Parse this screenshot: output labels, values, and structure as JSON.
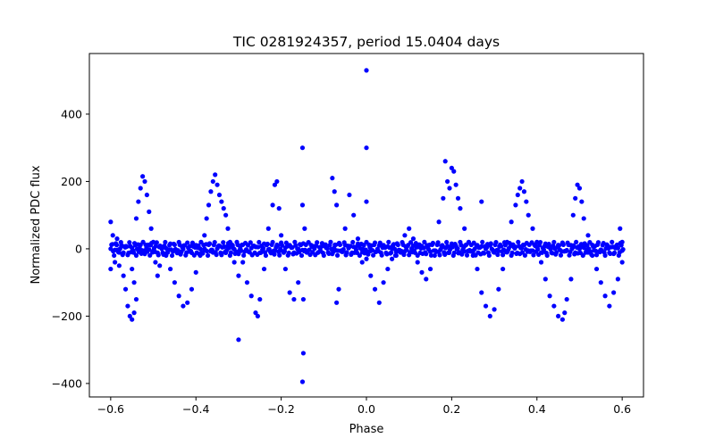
{
  "chart_data": {
    "type": "scatter",
    "title": "TIC 0281924357, period 15.0404 days",
    "xlabel": "Phase",
    "ylabel": "Normalized PDC flux",
    "xlim": [
      -0.65,
      0.65
    ],
    "ylim": [
      -440,
      580
    ],
    "xticks": [
      -0.6,
      -0.4,
      -0.2,
      0.0,
      0.2,
      0.4,
      0.6
    ],
    "xtick_labels": [
      "−0.6",
      "−0.4",
      "−0.2",
      "0.0",
      "0.2",
      "0.4",
      "0.6"
    ],
    "yticks": [
      -400,
      -200,
      0,
      200,
      400
    ],
    "ytick_labels": [
      "−400",
      "−200",
      "0",
      "200",
      "400"
    ],
    "grid": false,
    "marker_color": "#0000ff",
    "series": [
      {
        "points": [
          [
            -0.6,
            80
          ],
          [
            -0.6,
            -60
          ],
          [
            -0.595,
            40
          ],
          [
            -0.59,
            -40
          ],
          [
            -0.585,
            30
          ],
          [
            -0.58,
            -50
          ],
          [
            -0.575,
            10
          ],
          [
            -0.57,
            -80
          ],
          [
            -0.565,
            -120
          ],
          [
            -0.56,
            -170
          ],
          [
            -0.555,
            -200
          ],
          [
            -0.55,
            -210
          ],
          [
            -0.545,
            -190
          ],
          [
            -0.54,
            -150
          ],
          [
            -0.545,
            -100
          ],
          [
            -0.55,
            -60
          ],
          [
            -0.54,
            90
          ],
          [
            -0.535,
            140
          ],
          [
            -0.53,
            180
          ],
          [
            -0.525,
            215
          ],
          [
            -0.52,
            200
          ],
          [
            -0.515,
            160
          ],
          [
            -0.51,
            110
          ],
          [
            -0.505,
            60
          ],
          [
            -0.5,
            20
          ],
          [
            -0.495,
            -40
          ],
          [
            -0.49,
            -80
          ],
          [
            -0.485,
            -50
          ],
          [
            -0.48,
            0
          ],
          [
            -0.47,
            -20
          ],
          [
            -0.46,
            -60
          ],
          [
            -0.45,
            -100
          ],
          [
            -0.44,
            -140
          ],
          [
            -0.43,
            -170
          ],
          [
            -0.42,
            -160
          ],
          [
            -0.41,
            -120
          ],
          [
            -0.4,
            -70
          ],
          [
            -0.39,
            -20
          ],
          [
            -0.38,
            40
          ],
          [
            -0.375,
            90
          ],
          [
            -0.37,
            130
          ],
          [
            -0.365,
            170
          ],
          [
            -0.36,
            200
          ],
          [
            -0.355,
            220
          ],
          [
            -0.35,
            190
          ],
          [
            -0.345,
            160
          ],
          [
            -0.34,
            140
          ],
          [
            -0.335,
            120
          ],
          [
            -0.33,
            100
          ],
          [
            -0.325,
            60
          ],
          [
            -0.32,
            20
          ],
          [
            -0.31,
            -40
          ],
          [
            -0.3,
            -80
          ],
          [
            -0.3,
            -270
          ],
          [
            -0.29,
            -40
          ],
          [
            -0.28,
            -100
          ],
          [
            -0.27,
            -140
          ],
          [
            -0.26,
            -190
          ],
          [
            -0.255,
            -200
          ],
          [
            -0.25,
            -150
          ],
          [
            -0.24,
            -60
          ],
          [
            -0.23,
            60
          ],
          [
            -0.22,
            130
          ],
          [
            -0.215,
            190
          ],
          [
            -0.21,
            200
          ],
          [
            -0.205,
            120
          ],
          [
            -0.2,
            40
          ],
          [
            -0.19,
            -60
          ],
          [
            -0.18,
            -130
          ],
          [
            -0.17,
            -150
          ],
          [
            -0.16,
            -100
          ],
          [
            -0.15,
            300
          ],
          [
            -0.148,
            -310
          ],
          [
            -0.15,
            -395
          ],
          [
            -0.148,
            -150
          ],
          [
            -0.15,
            130
          ],
          [
            -0.145,
            60
          ],
          [
            -0.08,
            210
          ],
          [
            -0.075,
            170
          ],
          [
            -0.07,
            130
          ],
          [
            -0.065,
            -120
          ],
          [
            -0.07,
            -160
          ],
          [
            -0.05,
            60
          ],
          [
            -0.04,
            160
          ],
          [
            -0.03,
            100
          ],
          [
            -0.02,
            30
          ],
          [
            -0.01,
            -40
          ],
          [
            0.0,
            530
          ],
          [
            0.0,
            300
          ],
          [
            0.0,
            140
          ],
          [
            0.0,
            -30
          ],
          [
            0.01,
            -80
          ],
          [
            0.02,
            -120
          ],
          [
            0.03,
            -160
          ],
          [
            0.04,
            -100
          ],
          [
            0.05,
            -60
          ],
          [
            0.06,
            -30
          ],
          [
            0.07,
            -20
          ],
          [
            0.08,
            -10
          ],
          [
            0.09,
            40
          ],
          [
            0.1,
            60
          ],
          [
            0.11,
            30
          ],
          [
            0.12,
            -40
          ],
          [
            0.13,
            -70
          ],
          [
            0.14,
            -90
          ],
          [
            0.15,
            -60
          ],
          [
            0.16,
            -20
          ],
          [
            0.17,
            80
          ],
          [
            0.18,
            150
          ],
          [
            0.185,
            260
          ],
          [
            0.19,
            200
          ],
          [
            0.195,
            180
          ],
          [
            0.2,
            240
          ],
          [
            0.205,
            230
          ],
          [
            0.21,
            190
          ],
          [
            0.215,
            150
          ],
          [
            0.22,
            120
          ],
          [
            0.23,
            60
          ],
          [
            0.24,
            20
          ],
          [
            0.25,
            -20
          ],
          [
            0.26,
            -60
          ],
          [
            0.27,
            140
          ],
          [
            0.27,
            -130
          ],
          [
            0.28,
            -170
          ],
          [
            0.29,
            -200
          ],
          [
            0.3,
            -180
          ],
          [
            0.31,
            -120
          ],
          [
            0.32,
            -60
          ],
          [
            0.33,
            20
          ],
          [
            0.34,
            80
          ],
          [
            0.35,
            130
          ],
          [
            0.355,
            160
          ],
          [
            0.36,
            180
          ],
          [
            0.365,
            200
          ],
          [
            0.37,
            170
          ],
          [
            0.375,
            140
          ],
          [
            0.38,
            100
          ],
          [
            0.39,
            60
          ],
          [
            0.4,
            20
          ],
          [
            0.41,
            -40
          ],
          [
            0.42,
            -90
          ],
          [
            0.43,
            -140
          ],
          [
            0.44,
            -170
          ],
          [
            0.45,
            -200
          ],
          [
            0.46,
            -210
          ],
          [
            0.465,
            -190
          ],
          [
            0.47,
            -150
          ],
          [
            0.48,
            -90
          ],
          [
            0.485,
            100
          ],
          [
            0.49,
            150
          ],
          [
            0.495,
            190
          ],
          [
            0.5,
            180
          ],
          [
            0.505,
            140
          ],
          [
            0.51,
            90
          ],
          [
            0.52,
            40
          ],
          [
            0.53,
            -20
          ],
          [
            0.54,
            -60
          ],
          [
            0.55,
            -100
          ],
          [
            0.56,
            -140
          ],
          [
            0.57,
            -170
          ],
          [
            0.58,
            -130
          ],
          [
            0.59,
            -90
          ],
          [
            0.6,
            -40
          ],
          [
            0.6,
            20
          ],
          [
            0.595,
            60
          ]
        ],
        "band": {
          "x_start": -0.6,
          "x_end": 0.6,
          "step": 0.004,
          "y_center": 0,
          "amplitude": 20
        }
      }
    ]
  }
}
